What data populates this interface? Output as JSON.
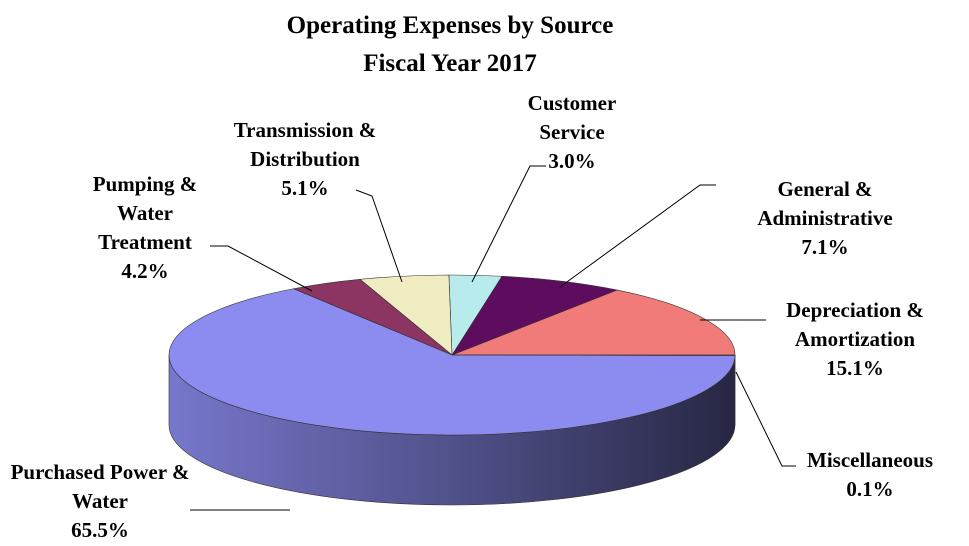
{
  "chart_data": {
    "type": "pie3d",
    "title": "Operating Expenses by Source",
    "subtitle": "Fiscal Year 2017",
    "categories": [
      "Depreciation & Amortization",
      "General & Administrative",
      "Customer Service",
      "Transmission & Distribution",
      "Pumping & Water Treatment",
      "Purchased Power & Water",
      "Miscellaneous"
    ],
    "values": [
      15.1,
      7.1,
      3.0,
      5.1,
      4.2,
      65.5,
      0.1
    ],
    "value_labels": [
      "15.1%",
      "7.1%",
      "3.0%",
      "5.1%",
      "4.2%",
      "65.5%",
      "0.1%"
    ],
    "colors": [
      "#f07b78",
      "#5e0c5e",
      "#b8ecec",
      "#f0ecc2",
      "#8c3462",
      "#8c8cf0",
      "#4a6ec8"
    ]
  }
}
